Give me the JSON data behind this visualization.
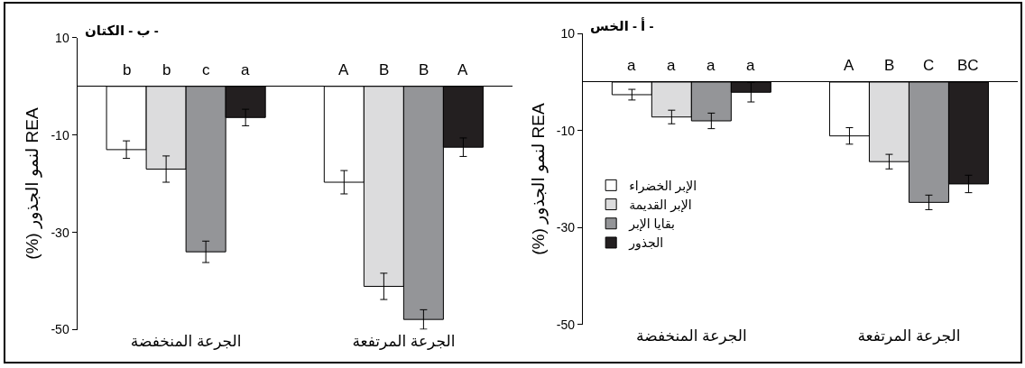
{
  "chart_data": [
    {
      "type": "bar",
      "title": "- أ - الخس",
      "ylabel": "REA لنمو الجذور (%)",
      "categories": [
        "الجرعة المنخفضة",
        "الجرعة المرتفعة"
      ],
      "series": [
        {
          "name": "الإبر الخضراء",
          "color": "#ffffff",
          "values": [
            -2.6,
            -11.1
          ],
          "errors": [
            1.1,
            1.7
          ],
          "value_labels": [
            "a",
            "A"
          ]
        },
        {
          "name": "الإبر القديمة",
          "color": "#dcdcdd",
          "values": [
            -7.2,
            -16.4
          ],
          "errors": [
            1.4,
            1.5
          ],
          "value_labels": [
            "a",
            "B"
          ]
        },
        {
          "name": "بقايا الإبر",
          "color": "#949598",
          "values": [
            -8.0,
            -24.8
          ],
          "errors": [
            1.6,
            1.5
          ],
          "value_labels": [
            "a",
            "C"
          ]
        },
        {
          "name": "الجذور",
          "color": "#231f20",
          "values": [
            -2.1,
            -21.0
          ],
          "errors": [
            2.0,
            1.8
          ],
          "value_labels": [
            "a",
            "BC"
          ]
        }
      ],
      "ylim": [
        -50,
        10
      ],
      "yticks": [
        -50,
        -30,
        -10,
        10
      ],
      "legend": "left"
    },
    {
      "type": "bar",
      "title": "- ب - الكتان",
      "ylabel": "REA لنمو الجذور (%)",
      "categories": [
        "الجرعة المنخفضة",
        "الجرعة المرتفعة"
      ],
      "series": [
        {
          "color": "#ffffff",
          "values": [
            -13.0,
            -19.7
          ],
          "errors": [
            1.8,
            2.4
          ],
          "value_labels": [
            "b",
            "A"
          ]
        },
        {
          "color": "#dcdcdd",
          "values": [
            -17.0,
            -41.1
          ],
          "errors": [
            2.7,
            2.7
          ],
          "value_labels": [
            "b",
            "B"
          ]
        },
        {
          "color": "#949598",
          "values": [
            -34.0,
            -47.9
          ],
          "errors": [
            2.2,
            2.0
          ],
          "value_labels": [
            "c",
            "B"
          ]
        },
        {
          "color": "#231f20",
          "values": [
            -6.4,
            -12.5
          ],
          "errors": [
            1.7,
            1.9
          ],
          "value_labels": [
            "a",
            "A"
          ]
        }
      ],
      "ylim": [
        -50,
        10
      ],
      "yticks": [
        -50,
        -30,
        -10,
        10
      ]
    }
  ]
}
